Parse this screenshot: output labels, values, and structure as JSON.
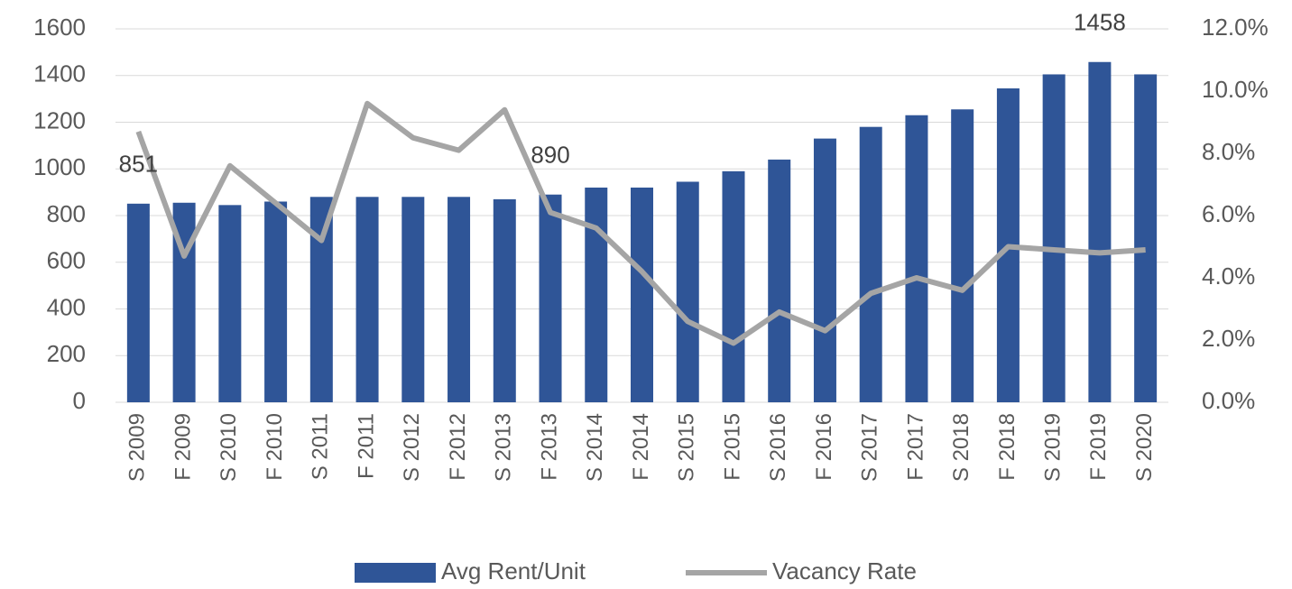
{
  "chart_data": {
    "type": "bar",
    "categories": [
      "S 2009",
      "F 2009",
      "S 2010",
      "F 2010",
      "S 2011",
      "F 2011",
      "S 2012",
      "F 2012",
      "S 2013",
      "F 2013",
      "S 2014",
      "F 2014",
      "S 2015",
      "F 2015",
      "S 2016",
      "F 2016",
      "S 2017",
      "F 2017",
      "S 2018",
      "F 2018",
      "S 2019",
      "F 2019",
      "S 2020"
    ],
    "series": [
      {
        "name": "Avg Rent/Unit",
        "type": "bar",
        "color": "#2f5597",
        "values": [
          851,
          855,
          845,
          860,
          880,
          880,
          880,
          880,
          870,
          890,
          920,
          920,
          945,
          990,
          1040,
          1130,
          1180,
          1230,
          1255,
          1345,
          1405,
          1458,
          1405
        ],
        "value_labels": [
          "851",
          null,
          null,
          null,
          null,
          null,
          null,
          null,
          null,
          "890",
          null,
          null,
          null,
          null,
          null,
          null,
          null,
          null,
          null,
          null,
          null,
          "1458",
          null
        ]
      },
      {
        "name": "Vacancy Rate",
        "type": "line",
        "axis": "y2",
        "color": "#a5a5a5",
        "values": [
          8.7,
          4.7,
          7.6,
          6.4,
          5.2,
          9.6,
          8.5,
          8.1,
          9.4,
          6.1,
          5.6,
          4.2,
          2.6,
          1.9,
          2.9,
          2.3,
          3.5,
          4.0,
          3.6,
          5.0,
          4.9,
          4.8,
          4.9
        ]
      }
    ],
    "ylim": [
      0,
      1600
    ],
    "yticks": [
      0,
      200,
      400,
      600,
      800,
      1000,
      1200,
      1400,
      1600
    ],
    "y2lim": [
      0,
      12
    ],
    "y2ticks": [
      {
        "value": 0,
        "label": "0.0%"
      },
      {
        "value": 2,
        "label": "2.0%"
      },
      {
        "value": 4,
        "label": "4.0%"
      },
      {
        "value": 6,
        "label": "6.0%"
      },
      {
        "value": 8,
        "label": "8.0%"
      },
      {
        "value": 10,
        "label": "10.0%"
      },
      {
        "value": 12,
        "label": "12.0%"
      }
    ],
    "grid": true,
    "legend": "bottom"
  }
}
